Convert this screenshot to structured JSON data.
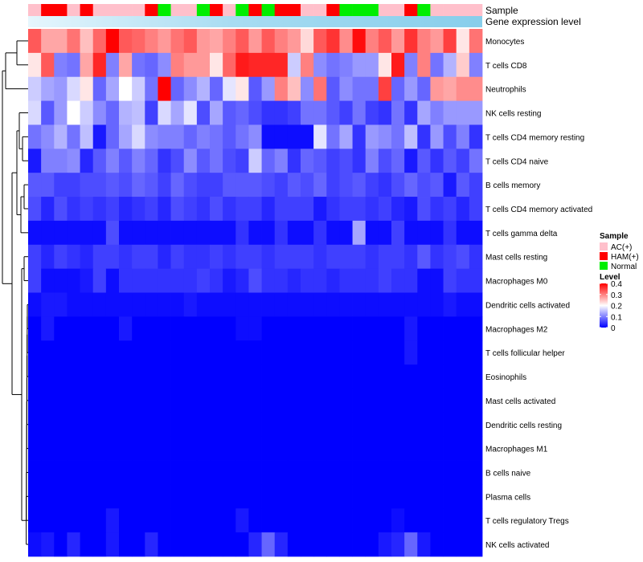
{
  "chart_data": {
    "type": "heatmap",
    "title": "",
    "annotation_rows": [
      "Sample",
      "Gene expression level"
    ],
    "rows": [
      "Monocytes",
      "T cells CD8",
      "Neutrophils",
      "NK cells resting",
      "T cells CD4 memory resting",
      "T cells CD4 naive",
      "B cells memory",
      "T cells CD4 memory activated",
      "T cells gamma delta",
      "Mast cells resting",
      "Macrophages M0",
      "Dendritic cells activated",
      "Macrophages M2",
      "T cells follicular helper",
      "Eosinophils",
      "Mast cells activated",
      "Dendritic cells resting",
      "Macrophages M1",
      "B cells naive",
      "Plasma cells",
      "T cells regulatory  Tregs",
      "NK cells activated"
    ],
    "sample_groups": [
      "AC(+)",
      "HAM(+)",
      "HAM(+)",
      "AC(+)",
      "HAM(+)",
      "AC(+)",
      "AC(+)",
      "AC(+)",
      "AC(+)",
      "HAM(+)",
      "Normal",
      "AC(+)",
      "AC(+)",
      "Normal",
      "HAM(+)",
      "AC(+)",
      "Normal",
      "HAM(+)",
      "Normal",
      "HAM(+)",
      "HAM(+)",
      "AC(+)",
      "AC(+)",
      "HAM(+)",
      "Normal",
      "Normal",
      "Normal",
      "AC(+)",
      "AC(+)",
      "HAM(+)",
      "Normal",
      "AC(+)",
      "AC(+)",
      "AC(+)",
      "AC(+)"
    ],
    "values": [
      [
        0.33,
        0.27,
        0.27,
        0.31,
        0.25,
        0.32,
        0.4,
        0.33,
        0.32,
        0.3,
        0.28,
        0.31,
        0.33,
        0.28,
        0.27,
        0.3,
        0.33,
        0.28,
        0.33,
        0.3,
        0.28,
        0.23,
        0.33,
        0.36,
        0.29,
        0.39,
        0.3,
        0.33,
        0.28,
        0.36,
        0.3,
        0.28,
        0.35,
        0.22,
        0.31
      ],
      [
        0.22,
        0.33,
        0.1,
        0.09,
        0.27,
        0.37,
        0.1,
        0.27,
        0.09,
        0.08,
        0.11,
        0.3,
        0.28,
        0.28,
        0.22,
        0.32,
        0.38,
        0.37,
        0.37,
        0.37,
        0.16,
        0.3,
        0.11,
        0.09,
        0.1,
        0.12,
        0.12,
        0.22,
        0.38,
        0.1,
        0.3,
        0.09,
        0.14,
        0.24,
        0.1
      ],
      [
        0.16,
        0.13,
        0.12,
        0.17,
        0.22,
        0.08,
        0.13,
        0.2,
        0.16,
        0.09,
        0.4,
        0.08,
        0.11,
        0.14,
        0.08,
        0.18,
        0.22,
        0.07,
        0.12,
        0.3,
        0.25,
        0.11,
        0.31,
        0.07,
        0.11,
        0.09,
        0.09,
        0.35,
        0.08,
        0.12,
        0.08,
        0.28,
        0.27,
        0.29,
        0.29
      ],
      [
        0.17,
        0.07,
        0.12,
        0.2,
        0.16,
        0.11,
        0.08,
        0.14,
        0.15,
        0.05,
        0.17,
        0.13,
        0.18,
        0.06,
        0.13,
        0.07,
        0.08,
        0.06,
        0.04,
        0.04,
        0.05,
        0.09,
        0.09,
        0.07,
        0.05,
        0.09,
        0.05,
        0.04,
        0.09,
        0.04,
        0.13,
        0.1,
        0.12,
        0.12,
        0.12
      ],
      [
        0.09,
        0.11,
        0.14,
        0.09,
        0.15,
        0.02,
        0.08,
        0.13,
        0.17,
        0.11,
        0.1,
        0.1,
        0.08,
        0.1,
        0.09,
        0.07,
        0.09,
        0.11,
        0.01,
        0.01,
        0.01,
        0.01,
        0.18,
        0.09,
        0.13,
        0.04,
        0.12,
        0.11,
        0.09,
        0.15,
        0.04,
        0.12,
        0.06,
        0.1,
        0.04
      ],
      [
        0.02,
        0.1,
        0.1,
        0.11,
        0.03,
        0.07,
        0.1,
        0.07,
        0.1,
        0.08,
        0.04,
        0.06,
        0.11,
        0.07,
        0.09,
        0.06,
        0.05,
        0.16,
        0.08,
        0.1,
        0.04,
        0.08,
        0.07,
        0.05,
        0.06,
        0.04,
        0.1,
        0.06,
        0.08,
        0.02,
        0.07,
        0.04,
        0.07,
        0.05,
        0.09
      ],
      [
        0.07,
        0.07,
        0.05,
        0.05,
        0.06,
        0.06,
        0.07,
        0.06,
        0.08,
        0.07,
        0.05,
        0.08,
        0.06,
        0.05,
        0.05,
        0.07,
        0.07,
        0.07,
        0.06,
        0.05,
        0.07,
        0.06,
        0.08,
        0.05,
        0.06,
        0.07,
        0.05,
        0.04,
        0.06,
        0.08,
        0.06,
        0.07,
        0.02,
        0.07,
        0.05
      ],
      [
        0.06,
        0.03,
        0.06,
        0.04,
        0.05,
        0.04,
        0.05,
        0.03,
        0.04,
        0.05,
        0.03,
        0.06,
        0.05,
        0.04,
        0.06,
        0.04,
        0.05,
        0.05,
        0.03,
        0.05,
        0.05,
        0.05,
        0.02,
        0.04,
        0.05,
        0.05,
        0.04,
        0.05,
        0.03,
        0.02,
        0.06,
        0.04,
        0.05,
        0.03,
        0.05
      ],
      [
        0.01,
        0.01,
        0.01,
        0.01,
        0.01,
        0.01,
        0.06,
        0.01,
        0.01,
        0.01,
        0.01,
        0.01,
        0.01,
        0.01,
        0.01,
        0.01,
        0.04,
        0.01,
        0.01,
        0.04,
        0.01,
        0.01,
        0.04,
        0.01,
        0.01,
        0.13,
        0.01,
        0.01,
        0.05,
        0.01,
        0.01,
        0.01,
        0.04,
        0.01,
        0.01
      ],
      [
        0.05,
        0.03,
        0.05,
        0.04,
        0.03,
        0.05,
        0.05,
        0.04,
        0.05,
        0.05,
        0.03,
        0.05,
        0.04,
        0.04,
        0.05,
        0.04,
        0.05,
        0.05,
        0.04,
        0.05,
        0.05,
        0.05,
        0.04,
        0.05,
        0.05,
        0.05,
        0.04,
        0.05,
        0.05,
        0.04,
        0.07,
        0.04,
        0.05,
        0.06,
        0.04
      ],
      [
        0.05,
        0.01,
        0.01,
        0.01,
        0.02,
        0.05,
        0.01,
        0.04,
        0.04,
        0.04,
        0.04,
        0.04,
        0.04,
        0.05,
        0.04,
        0.02,
        0.03,
        0.06,
        0.04,
        0.04,
        0.03,
        0.04,
        0.04,
        0.03,
        0.04,
        0.04,
        0.04,
        0.05,
        0.04,
        0.04,
        0.01,
        0.01,
        0.05,
        0.04,
        0.04
      ],
      [
        0.01,
        0.02,
        0.02,
        0.01,
        0.01,
        0.01,
        0.01,
        0.01,
        0.01,
        0.01,
        0.01,
        0.01,
        0.02,
        0.01,
        0.01,
        0.01,
        0.01,
        0.01,
        0.01,
        0.01,
        0.01,
        0.01,
        0.01,
        0.01,
        0.01,
        0.01,
        0.01,
        0.01,
        0.01,
        0.01,
        0.01,
        0.01,
        0.02,
        0.01,
        0.01
      ],
      [
        0.0,
        0.02,
        0.0,
        0.0,
        0.0,
        0.0,
        0.0,
        0.02,
        0.0,
        0.0,
        0.0,
        0.0,
        0.0,
        0.0,
        0.0,
        0.0,
        0.01,
        0.01,
        0.0,
        0.0,
        0.0,
        0.0,
        0.0,
        0.0,
        0.0,
        0.0,
        0.0,
        0.0,
        0.0,
        0.02,
        0.0,
        0.0,
        0.0,
        0.0,
        0.0
      ],
      [
        0.0,
        0.0,
        0.0,
        0.0,
        0.0,
        0.0,
        0.0,
        0.0,
        0.0,
        0.0,
        0.0,
        0.0,
        0.0,
        0.0,
        0.0,
        0.0,
        0.0,
        0.0,
        0.0,
        0.0,
        0.0,
        0.0,
        0.0,
        0.0,
        0.0,
        0.0,
        0.0,
        0.0,
        0.0,
        0.02,
        0.0,
        0.0,
        0.0,
        0.0,
        0.0
      ],
      [
        0.0,
        0.0,
        0.0,
        0.0,
        0.0,
        0.0,
        0.0,
        0.0,
        0.0,
        0.0,
        0.0,
        0.0,
        0.0,
        0.0,
        0.0,
        0.0,
        0.0,
        0.0,
        0.0,
        0.0,
        0.0,
        0.0,
        0.0,
        0.0,
        0.0,
        0.0,
        0.0,
        0.0,
        0.0,
        0.0,
        0.0,
        0.0,
        0.0,
        0.0,
        0.0
      ],
      [
        0.0,
        0.0,
        0.0,
        0.0,
        0.0,
        0.0,
        0.0,
        0.0,
        0.0,
        0.0,
        0.0,
        0.0,
        0.0,
        0.0,
        0.0,
        0.0,
        0.0,
        0.0,
        0.0,
        0.0,
        0.0,
        0.0,
        0.0,
        0.0,
        0.0,
        0.0,
        0.0,
        0.0,
        0.0,
        0.0,
        0.0,
        0.0,
        0.0,
        0.0,
        0.0
      ],
      [
        0.0,
        0.0,
        0.0,
        0.0,
        0.0,
        0.0,
        0.0,
        0.0,
        0.0,
        0.0,
        0.0,
        0.0,
        0.0,
        0.0,
        0.0,
        0.0,
        0.0,
        0.0,
        0.0,
        0.0,
        0.0,
        0.0,
        0.0,
        0.0,
        0.0,
        0.0,
        0.0,
        0.0,
        0.0,
        0.0,
        0.0,
        0.0,
        0.0,
        0.0,
        0.0
      ],
      [
        0.0,
        0.0,
        0.0,
        0.0,
        0.0,
        0.0,
        0.0,
        0.0,
        0.0,
        0.0,
        0.0,
        0.0,
        0.0,
        0.0,
        0.0,
        0.0,
        0.0,
        0.0,
        0.0,
        0.0,
        0.0,
        0.0,
        0.0,
        0.0,
        0.0,
        0.0,
        0.0,
        0.0,
        0.0,
        0.0,
        0.0,
        0.0,
        0.0,
        0.0,
        0.0
      ],
      [
        0.0,
        0.0,
        0.0,
        0.0,
        0.0,
        0.0,
        0.0,
        0.0,
        0.0,
        0.0,
        0.0,
        0.0,
        0.0,
        0.0,
        0.0,
        0.0,
        0.0,
        0.0,
        0.0,
        0.0,
        0.0,
        0.0,
        0.0,
        0.0,
        0.0,
        0.0,
        0.0,
        0.0,
        0.0,
        0.0,
        0.0,
        0.0,
        0.0,
        0.0,
        0.0
      ],
      [
        0.0,
        0.0,
        0.0,
        0.0,
        0.0,
        0.0,
        0.0,
        0.0,
        0.0,
        0.0,
        0.0,
        0.0,
        0.0,
        0.0,
        0.0,
        0.0,
        0.0,
        0.0,
        0.0,
        0.0,
        0.0,
        0.0,
        0.0,
        0.0,
        0.0,
        0.0,
        0.0,
        0.0,
        0.0,
        0.0,
        0.0,
        0.0,
        0.0,
        0.0,
        0.0
      ],
      [
        0.0,
        0.0,
        0.0,
        0.0,
        0.0,
        0.0,
        0.02,
        0.0,
        0.0,
        0.0,
        0.0,
        0.0,
        0.0,
        0.0,
        0.0,
        0.0,
        0.02,
        0.0,
        0.0,
        0.0,
        0.0,
        0.0,
        0.0,
        0.0,
        0.0,
        0.0,
        0.0,
        0.0,
        0.01,
        0.0,
        0.0,
        0.0,
        0.0,
        0.0,
        0.0
      ],
      [
        0.01,
        0.02,
        0.0,
        0.03,
        0.0,
        0.0,
        0.02,
        0.0,
        0.0,
        0.03,
        0.0,
        0.0,
        0.0,
        0.0,
        0.0,
        0.0,
        0.0,
        0.03,
        0.08,
        0.03,
        0.0,
        0.0,
        0.0,
        0.0,
        0.0,
        0.0,
        0.0,
        0.02,
        0.03,
        0.08,
        0.02,
        0.0,
        0.0,
        0.0,
        0.0
      ]
    ],
    "color_scale": {
      "min": 0,
      "mid": 0.2,
      "max": 0.4,
      "low": "#0000ff",
      "midcolor": "#ffffff",
      "high": "#ff0000"
    },
    "legend": {
      "position": "right",
      "sample_title": "Sample",
      "sample_items": [
        {
          "label": "AC(+)",
          "color": "#ffc0cb"
        },
        {
          "label": "HAM(+)",
          "color": "#ff0000"
        },
        {
          "label": "Normal",
          "color": "#00ee00"
        }
      ],
      "level_title": "Level",
      "level_ticks": [
        "0.4",
        "0.3",
        "0.2",
        "0.1",
        "0"
      ],
      "level_values": [
        0.4,
        0.3,
        0.2,
        0.1,
        0
      ]
    },
    "gene_expression_color": "#87ceeb"
  }
}
